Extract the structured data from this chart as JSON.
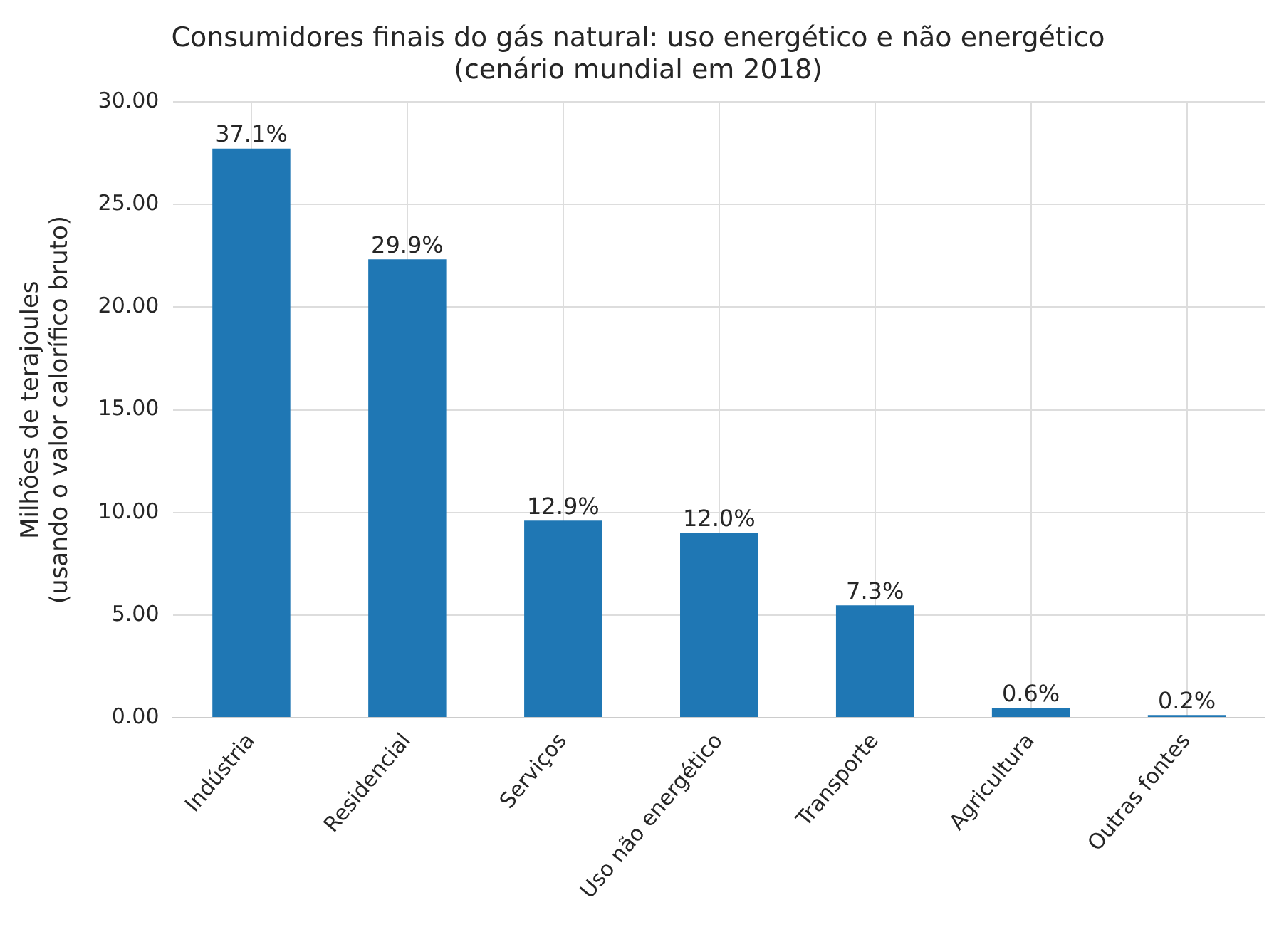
{
  "chart_data": {
    "type": "bar",
    "title": "Consumidores finais do gás natural: uso energético e não energético",
    "subtitle": "(cenário mundial em 2018)",
    "ylabel": "Milhões de terajoules\n(usando o valor calorífico bruto)",
    "categories": [
      "Indústria",
      "Residencial",
      "Serviços",
      "Uso não energético",
      "Transporte",
      "Agricultura",
      "Outras fontes"
    ],
    "values": [
      27.73,
      22.33,
      9.6,
      9.0,
      5.47,
      0.47,
      0.13
    ],
    "annotations": [
      {
        "text": "37.1%",
        "x": "Indústria",
        "y": 27.73
      },
      {
        "text": "29.9%",
        "x": "Residencial",
        "y": 22.33
      },
      {
        "text": "12.9%",
        "x": "Serviços",
        "y": 9.6
      },
      {
        "text": "12.0%",
        "x": "Uso não energético",
        "y": 9.0
      },
      {
        "text": "7.3%",
        "x": "Transporte",
        "y": 5.47
      },
      {
        "text": "0.6%",
        "x": "Agricultura",
        "y": 0.47
      },
      {
        "text": "0.2%",
        "x": "Outras fontes",
        "y": 0.13
      }
    ],
    "color": "#1f77b4",
    "ylim": [
      0,
      30
    ],
    "yticks": [
      {
        "value": 0,
        "label": "0.00"
      },
      {
        "value": 5,
        "label": "5.00"
      },
      {
        "value": 10,
        "label": "10.00"
      },
      {
        "value": 15,
        "label": "15.00"
      },
      {
        "value": 20,
        "label": "20.00"
      },
      {
        "value": 25,
        "label": "25.00"
      },
      {
        "value": 30,
        "label": "30.00"
      }
    ],
    "grid": true
  }
}
